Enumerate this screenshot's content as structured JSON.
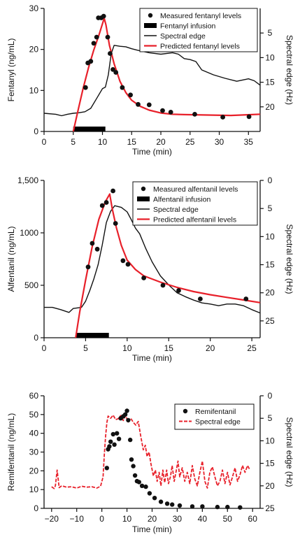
{
  "colors": {
    "predicted": "#e8202a",
    "spectral_dashed": "#e8202a",
    "ink": "#111111",
    "infusion": "#000000"
  },
  "chart_data": [
    {
      "type": "line",
      "ylabel": "Fentanyl (ng/mL)",
      "y2label": "Spectral edge (Hz)",
      "xlabel": "Time (min)",
      "xlim": [
        0,
        37
      ],
      "ylim": [
        0,
        30
      ],
      "y2lim_inverted": [
        0,
        25
      ],
      "xticks": [
        0,
        5,
        10,
        15,
        20,
        25,
        30,
        35
      ],
      "yticks": [
        0,
        10,
        20,
        30
      ],
      "y2ticks": [
        5,
        10,
        15,
        20
      ],
      "legend_position": "top-right",
      "legend": [
        "Measured fentanyl levels",
        "Fentanyl infusion",
        "Spectral edge",
        "Predicted fentanyl levels"
      ],
      "infusion": [
        5,
        10.5
      ],
      "measured": [
        [
          7.1,
          10.7
        ],
        [
          7.5,
          16.7
        ],
        [
          8.0,
          17.1
        ],
        [
          8.5,
          21.5
        ],
        [
          9.0,
          23.0
        ],
        [
          9.3,
          27.7
        ],
        [
          9.8,
          27.7
        ],
        [
          10.2,
          28.1
        ],
        [
          10.9,
          23.0
        ],
        [
          11.3,
          19.0
        ],
        [
          11.8,
          15.1
        ],
        [
          12.3,
          14.4
        ],
        [
          13.4,
          10.7
        ],
        [
          14.8,
          8.9
        ],
        [
          16.1,
          6.6
        ],
        [
          18.0,
          6.5
        ],
        [
          20.3,
          5.1
        ],
        [
          21.7,
          4.7
        ],
        [
          25.8,
          4.2
        ],
        [
          30.6,
          3.5
        ],
        [
          35.1,
          3.6
        ]
      ],
      "predicted": [
        [
          5.0,
          0.0
        ],
        [
          5.8,
          5.0
        ],
        [
          6.7,
          10.6
        ],
        [
          7.6,
          15.5
        ],
        [
          8.5,
          19.8
        ],
        [
          9.4,
          23.5
        ],
        [
          10.3,
          27.6
        ],
        [
          10.6,
          26.0
        ],
        [
          11.2,
          21.0
        ],
        [
          12.0,
          16.5
        ],
        [
          13.0,
          12.2
        ],
        [
          14.0,
          9.5
        ],
        [
          15.0,
          7.6
        ],
        [
          16.5,
          6.1
        ],
        [
          18.0,
          5.2
        ],
        [
          20.0,
          4.5
        ],
        [
          22.0,
          4.2
        ],
        [
          24.0,
          4.1
        ],
        [
          28.0,
          4.0
        ],
        [
          32.0,
          3.9
        ],
        [
          37.0,
          4.2
        ]
      ],
      "spectral_edge": [
        [
          0.0,
          21.3
        ],
        [
          2.0,
          21.5
        ],
        [
          3.0,
          21.8
        ],
        [
          4.0,
          21.5
        ],
        [
          5.0,
          21.3
        ],
        [
          6.0,
          21.2
        ],
        [
          7.0,
          21.0
        ],
        [
          8.0,
          20.3
        ],
        [
          9.0,
          18.3
        ],
        [
          10.0,
          16.3
        ],
        [
          10.5,
          16.0
        ],
        [
          11.0,
          13.5
        ],
        [
          11.5,
          9.2
        ],
        [
          12.0,
          7.5
        ],
        [
          13.0,
          7.7
        ],
        [
          14.0,
          7.8
        ],
        [
          15.0,
          8.2
        ],
        [
          16.0,
          8.5
        ],
        [
          18.0,
          9.0
        ],
        [
          20.0,
          9.3
        ],
        [
          22.0,
          9.0
        ],
        [
          23.0,
          9.3
        ],
        [
          24.0,
          10.2
        ],
        [
          25.0,
          10.4
        ],
        [
          26.0,
          10.8
        ],
        [
          27.0,
          12.5
        ],
        [
          29.0,
          13.5
        ],
        [
          31.0,
          14.2
        ],
        [
          33.0,
          14.8
        ],
        [
          35.0,
          14.3
        ],
        [
          36.0,
          14.7
        ],
        [
          37.0,
          15.6
        ]
      ]
    },
    {
      "type": "line",
      "ylabel": "Alfentanil (ng/mL)",
      "y2label": "Spectral edge (Hz)",
      "xlabel": "Time (min)",
      "xlim": [
        0,
        26
      ],
      "ylim": [
        0,
        1500
      ],
      "y2lim_inverted": [
        0,
        28
      ],
      "xticks": [
        0,
        5,
        10,
        15,
        20,
        25
      ],
      "yticks": [
        0,
        500,
        1000,
        1500
      ],
      "ytick_labels": [
        "0",
        "500",
        "1000",
        "1,500"
      ],
      "y2ticks": [
        0,
        5,
        10,
        15,
        20,
        25
      ],
      "legend_position": "top-right",
      "legend": [
        "Measured alfentanil levels",
        "Alfentanil infusion",
        "Spectral edge",
        "Predicted alfentanil levels"
      ],
      "infusion": [
        3.8,
        7.8
      ],
      "measured": [
        [
          5.3,
          675
        ],
        [
          5.8,
          900
        ],
        [
          6.4,
          845
        ],
        [
          7.0,
          1260
        ],
        [
          7.5,
          1290
        ],
        [
          8.3,
          1400
        ],
        [
          8.6,
          1090
        ],
        [
          9.5,
          735
        ],
        [
          10.1,
          700
        ],
        [
          12.0,
          570
        ],
        [
          14.3,
          500
        ],
        [
          16.2,
          450
        ],
        [
          18.8,
          370
        ],
        [
          24.3,
          370
        ]
      ],
      "predicted": [
        [
          3.8,
          0
        ],
        [
          4.3,
          250
        ],
        [
          5.0,
          550
        ],
        [
          5.8,
          870
        ],
        [
          6.6,
          1130
        ],
        [
          7.4,
          1300
        ],
        [
          7.9,
          1370
        ],
        [
          8.2,
          1230
        ],
        [
          8.7,
          1050
        ],
        [
          9.3,
          880
        ],
        [
          10.0,
          740
        ],
        [
          11.0,
          650
        ],
        [
          12.0,
          590
        ],
        [
          14.0,
          530
        ],
        [
          16.0,
          480
        ],
        [
          18.0,
          440
        ],
        [
          20.0,
          410
        ],
        [
          22.0,
          385
        ],
        [
          24.0,
          360
        ],
        [
          26.0,
          335
        ]
      ],
      "spectral_edge": [
        [
          0.0,
          22.6
        ],
        [
          1.0,
          22.6
        ],
        [
          2.0,
          23.0
        ],
        [
          3.0,
          23.5
        ],
        [
          3.5,
          22.8
        ],
        [
          4.5,
          22.6
        ],
        [
          5.0,
          21.5
        ],
        [
          5.5,
          19.6
        ],
        [
          6.0,
          17.5
        ],
        [
          6.5,
          15.0
        ],
        [
          7.0,
          11.5
        ],
        [
          7.5,
          7.5
        ],
        [
          8.0,
          5.5
        ],
        [
          8.5,
          4.5
        ],
        [
          9.3,
          4.8
        ],
        [
          10.0,
          5.6
        ],
        [
          10.5,
          7.0
        ],
        [
          11.0,
          8.5
        ],
        [
          11.5,
          9.5
        ],
        [
          12.2,
          12.0
        ],
        [
          13.0,
          14.5
        ],
        [
          14.0,
          17.0
        ],
        [
          15.0,
          18.6
        ],
        [
          16.0,
          20.0
        ],
        [
          17.0,
          20.7
        ],
        [
          18.0,
          21.3
        ],
        [
          19.0,
          21.8
        ],
        [
          20.0,
          22.0
        ],
        [
          21.0,
          22.3
        ],
        [
          22.0,
          22.0
        ],
        [
          23.0,
          22.0
        ],
        [
          24.0,
          22.3
        ],
        [
          25.0,
          23.0
        ],
        [
          26.0,
          23.6
        ]
      ]
    },
    {
      "type": "scatter",
      "ylabel": "Remifentanil (ng/mL)",
      "y2label": "Spectral edge (Hz)",
      "xlabel": "Time (min)",
      "xlim": [
        -23,
        63
      ],
      "ylim": [
        0,
        60
      ],
      "y2lim_inverted": [
        0,
        25
      ],
      "xticks": [
        -20,
        -10,
        0,
        10,
        20,
        30,
        40,
        50,
        60
      ],
      "xtick_labels": [
        "−20",
        "−10",
        "0",
        "10",
        "20",
        "30",
        "40",
        "50",
        "60"
      ],
      "yticks": [
        0,
        10,
        20,
        30,
        40,
        50,
        60
      ],
      "y2ticks": [
        0,
        5,
        10,
        15,
        20,
        25
      ],
      "legend_position": "top-right",
      "legend": [
        "Remifentanil",
        "Spectral edge"
      ],
      "measured": [
        [
          2.0,
          21.5
        ],
        [
          2.5,
          31.5
        ],
        [
          3.0,
          33.0
        ],
        [
          3.5,
          35.5
        ],
        [
          4.5,
          39.5
        ],
        [
          5.0,
          34.0
        ],
        [
          6.0,
          40.0
        ],
        [
          6.8,
          37.0
        ],
        [
          7.5,
          48.0
        ],
        [
          8.5,
          49.0
        ],
        [
          9.3,
          50.0
        ],
        [
          10.0,
          52.0
        ],
        [
          10.5,
          47.0
        ],
        [
          11.3,
          36.5
        ],
        [
          11.8,
          26.0
        ],
        [
          12.5,
          22.5
        ],
        [
          13.2,
          17.5
        ],
        [
          14.0,
          14.5
        ],
        [
          14.8,
          14.0
        ],
        [
          16.0,
          12.0
        ],
        [
          17.5,
          11.5
        ],
        [
          19.0,
          8.0
        ],
        [
          21.0,
          5.5
        ],
        [
          23.5,
          3.5
        ],
        [
          26.0,
          2.5
        ],
        [
          28.0,
          2.0
        ],
        [
          31.0,
          1.5
        ],
        [
          36.0,
          1.0
        ],
        [
          40.0,
          1.0
        ],
        [
          46.0,
          0.7
        ],
        [
          50.0,
          0.7
        ],
        [
          55.0,
          0.5
        ]
      ],
      "spectral_edge": [
        [
          -20,
          20.2
        ],
        [
          -19,
          20.6
        ],
        [
          -18.5,
          20.0
        ],
        [
          -17.8,
          16.5
        ],
        [
          -17,
          20.4
        ],
        [
          -16,
          20.0
        ],
        [
          -14,
          20.3
        ],
        [
          -12,
          20.2
        ],
        [
          -10,
          20.5
        ],
        [
          -8,
          20.1
        ],
        [
          -6,
          20.3
        ],
        [
          -4,
          20.2
        ],
        [
          -2,
          20.5
        ],
        [
          -0.5,
          20.1
        ],
        [
          0.5,
          18.0
        ],
        [
          1.0,
          13.0
        ],
        [
          1.5,
          9.0
        ],
        [
          2.0,
          6.0
        ],
        [
          2.5,
          4.5
        ],
        [
          3.5,
          5.0
        ],
        [
          4.5,
          4.3
        ],
        [
          5.5,
          5.3
        ],
        [
          6.5,
          5.1
        ],
        [
          7.5,
          4.4
        ],
        [
          8.5,
          5.5
        ],
        [
          9.5,
          4.4
        ],
        [
          10.5,
          5.8
        ],
        [
          11.5,
          5.0
        ],
        [
          12.5,
          5.9
        ],
        [
          13.5,
          6.5
        ],
        [
          14.5,
          5.7
        ],
        [
          15.5,
          9.0
        ],
        [
          16.5,
          12.0
        ],
        [
          17.3,
          11.0
        ],
        [
          18.0,
          13.5
        ],
        [
          18.8,
          12.5
        ],
        [
          19.5,
          15.0
        ],
        [
          20.5,
          17.8
        ],
        [
          21.3,
          16.5
        ],
        [
          22.0,
          19.0
        ],
        [
          22.8,
          17.0
        ],
        [
          23.5,
          20.0
        ],
        [
          24.3,
          16.5
        ],
        [
          25.0,
          19.3
        ],
        [
          25.8,
          16.5
        ],
        [
          26.5,
          19.5
        ],
        [
          27.3,
          18.0
        ],
        [
          28.0,
          15.5
        ],
        [
          28.8,
          19.0
        ],
        [
          29.5,
          17.0
        ],
        [
          30.3,
          14.5
        ],
        [
          31.0,
          18.0
        ],
        [
          32.0,
          16.0
        ],
        [
          33.0,
          19.0
        ],
        [
          34.0,
          17.0
        ],
        [
          35.0,
          19.5
        ],
        [
          36.0,
          15.5
        ],
        [
          37.0,
          18.5
        ],
        [
          38.0,
          20.0
        ],
        [
          39.0,
          17.0
        ],
        [
          40.0,
          14.5
        ],
        [
          41.0,
          19.0
        ],
        [
          42.0,
          20.5
        ],
        [
          43.0,
          17.0
        ],
        [
          44.0,
          15.8
        ],
        [
          45.0,
          18.0
        ],
        [
          46.0,
          20.0
        ],
        [
          47.0,
          19.0
        ],
        [
          48.0,
          16.5
        ],
        [
          49.0,
          19.5
        ],
        [
          50.0,
          17.0
        ],
        [
          51.0,
          19.8
        ],
        [
          52.0,
          18.0
        ],
        [
          53.0,
          16.0
        ],
        [
          54.0,
          19.0
        ],
        [
          55.0,
          17.5
        ],
        [
          56.0,
          15.5
        ],
        [
          57.0,
          17.0
        ],
        [
          58.0,
          15.5
        ],
        [
          59.0,
          16.5
        ]
      ]
    }
  ]
}
